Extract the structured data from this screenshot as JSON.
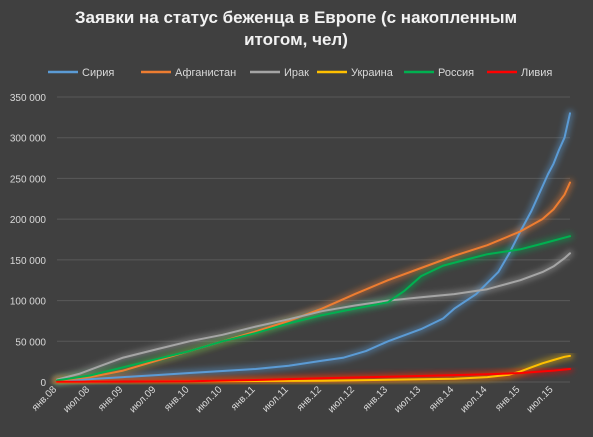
{
  "chart_data": {
    "type": "line",
    "title_lines": [
      "Заявки на статус беженца в Европе (с накопленным",
      "итогом, чел)"
    ],
    "xlabel": "",
    "ylabel": "",
    "ylim": [
      0,
      350000
    ],
    "y_ticks": [
      0,
      50000,
      100000,
      150000,
      200000,
      250000,
      300000,
      350000
    ],
    "y_tick_labels": [
      "0",
      "50 000",
      "100 000",
      "150 000",
      "200 000",
      "250 000",
      "300 000",
      "350 000"
    ],
    "x_months": 91,
    "x_tick_labels": [
      "янв.08",
      "июл.08",
      "янв.09",
      "июл.09",
      "янв.10",
      "июл.10",
      "янв.11",
      "июл.11",
      "янв.12",
      "июл.12",
      "янв.13",
      "июл.13",
      "янв.14",
      "июл.14",
      "янв.15",
      "июл.15"
    ],
    "grid": true,
    "legend_position": "top",
    "series": [
      {
        "name": "Сирия",
        "color": "#5b9bd5",
        "points": [
          [
            0,
            1500
          ],
          [
            6,
            3500
          ],
          [
            12,
            6000
          ],
          [
            18,
            8500
          ],
          [
            24,
            11000
          ],
          [
            30,
            13500
          ],
          [
            36,
            16000
          ],
          [
            42,
            20000
          ],
          [
            48,
            26000
          ],
          [
            52,
            30000
          ],
          [
            56,
            38000
          ],
          [
            60,
            50000
          ],
          [
            66,
            65000
          ],
          [
            70,
            78000
          ],
          [
            72,
            90000
          ],
          [
            76,
            108000
          ],
          [
            80,
            135000
          ],
          [
            82,
            158000
          ],
          [
            84,
            185000
          ],
          [
            86,
            210000
          ],
          [
            87,
            225000
          ],
          [
            88,
            240000
          ],
          [
            89,
            255000
          ],
          [
            90,
            268000
          ],
          [
            91,
            285000
          ],
          [
            92,
            300000
          ],
          [
            93,
            330000
          ]
        ]
      },
      {
        "name": "Афганистан",
        "color": "#ed7d31",
        "points": [
          [
            0,
            2000
          ],
          [
            6,
            6000
          ],
          [
            12,
            14000
          ],
          [
            18,
            26000
          ],
          [
            24,
            38000
          ],
          [
            30,
            50000
          ],
          [
            36,
            62000
          ],
          [
            42,
            75000
          ],
          [
            48,
            90000
          ],
          [
            54,
            108000
          ],
          [
            60,
            125000
          ],
          [
            66,
            140000
          ],
          [
            72,
            155000
          ],
          [
            78,
            168000
          ],
          [
            84,
            185000
          ],
          [
            88,
            200000
          ],
          [
            90,
            212000
          ],
          [
            92,
            230000
          ],
          [
            93,
            245000
          ]
        ]
      },
      {
        "name": "Ирак",
        "color": "#a5a5a5",
        "points": [
          [
            0,
            3000
          ],
          [
            4,
            10000
          ],
          [
            8,
            20000
          ],
          [
            12,
            30000
          ],
          [
            18,
            40000
          ],
          [
            24,
            50000
          ],
          [
            30,
            58000
          ],
          [
            36,
            68000
          ],
          [
            42,
            77000
          ],
          [
            48,
            87000
          ],
          [
            54,
            94000
          ],
          [
            60,
            100000
          ],
          [
            66,
            104000
          ],
          [
            72,
            108000
          ],
          [
            78,
            114000
          ],
          [
            84,
            125000
          ],
          [
            88,
            135000
          ],
          [
            90,
            142000
          ],
          [
            92,
            152000
          ],
          [
            93,
            158000
          ]
        ]
      },
      {
        "name": "Украина",
        "color": "#ffc000",
        "points": [
          [
            0,
            300
          ],
          [
            24,
            800
          ],
          [
            48,
            1500
          ],
          [
            72,
            4000
          ],
          [
            78,
            6000
          ],
          [
            82,
            9000
          ],
          [
            84,
            13000
          ],
          [
            86,
            18000
          ],
          [
            88,
            23000
          ],
          [
            90,
            27000
          ],
          [
            92,
            31000
          ],
          [
            93,
            32000
          ]
        ]
      },
      {
        "name": "Россия",
        "color": "#00b050",
        "points": [
          [
            0,
            2000
          ],
          [
            6,
            8000
          ],
          [
            12,
            18000
          ],
          [
            18,
            28000
          ],
          [
            24,
            38000
          ],
          [
            30,
            50000
          ],
          [
            36,
            60000
          ],
          [
            42,
            72000
          ],
          [
            48,
            82000
          ],
          [
            54,
            90000
          ],
          [
            60,
            98000
          ],
          [
            63,
            112000
          ],
          [
            66,
            130000
          ],
          [
            70,
            143000
          ],
          [
            74,
            150000
          ],
          [
            78,
            157000
          ],
          [
            84,
            163000
          ],
          [
            88,
            170000
          ],
          [
            93,
            179000
          ]
        ]
      },
      {
        "name": "Ливия",
        "color": "#ff0000",
        "points": [
          [
            0,
            300
          ],
          [
            24,
            1000
          ],
          [
            36,
            2500
          ],
          [
            48,
            4500
          ],
          [
            60,
            6500
          ],
          [
            72,
            8500
          ],
          [
            78,
            9500
          ],
          [
            84,
            11000
          ],
          [
            90,
            14000
          ],
          [
            93,
            16000
          ]
        ]
      }
    ]
  }
}
